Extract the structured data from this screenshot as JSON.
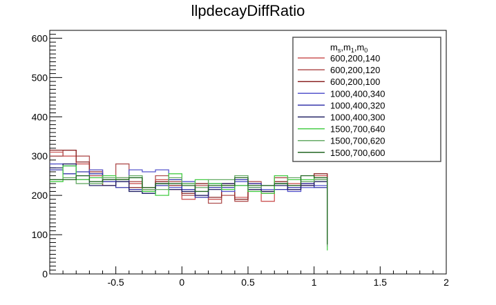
{
  "chart_data": {
    "type": "line",
    "title": "llpdecayDiffRatio",
    "xlabel": "",
    "ylabel": "",
    "xlim": [
      -1.0,
      2.0
    ],
    "ylim": [
      0,
      620
    ],
    "x_ticks": [
      -0.5,
      0,
      0.5,
      1,
      1.5,
      2
    ],
    "x_tick_labels": [
      "-0.5",
      "0",
      "0.5",
      "1",
      "1.5",
      "2"
    ],
    "y_ticks": [
      0,
      100,
      200,
      300,
      400,
      500,
      600
    ],
    "y_tick_labels": [
      "0",
      "100",
      "200",
      "300",
      "400",
      "500",
      "600"
    ],
    "bin_edges": [
      -1.0,
      -0.9,
      -0.8,
      -0.7,
      -0.6,
      -0.5,
      -0.4,
      -0.3,
      -0.2,
      -0.1,
      0.0,
      0.1,
      0.2,
      0.3,
      0.4,
      0.5,
      0.6,
      0.7,
      0.8,
      0.9,
      1.0,
      1.1
    ],
    "legend": {
      "title_main": "m",
      "title_subs": [
        "s",
        "1",
        "0"
      ],
      "placement": "top-right"
    },
    "series": [
      {
        "name": "600,200,140",
        "color": "#cc5555",
        "values": [
          310,
          300,
          280,
          265,
          240,
          245,
          230,
          215,
          240,
          215,
          190,
          200,
          190,
          230,
          195,
          230,
          185,
          245,
          230,
          225,
          250,
          80
        ]
      },
      {
        "name": "600,200,120",
        "color": "#b05050",
        "values": [
          300,
          315,
          300,
          250,
          225,
          280,
          235,
          220,
          250,
          235,
          200,
          225,
          180,
          200,
          185,
          235,
          205,
          245,
          215,
          230,
          240,
          85
        ]
      },
      {
        "name": "600,200,100",
        "color": "#8b2525",
        "values": [
          315,
          315,
          285,
          260,
          225,
          240,
          220,
          215,
          235,
          225,
          205,
          230,
          195,
          225,
          190,
          215,
          210,
          235,
          225,
          225,
          255,
          80
        ]
      },
      {
        "name": "1000,400,340",
        "color": "#5555cc",
        "values": [
          280,
          275,
          250,
          265,
          240,
          235,
          265,
          260,
          265,
          220,
          235,
          200,
          230,
          210,
          235,
          220,
          215,
          230,
          210,
          220,
          225,
          70
        ]
      },
      {
        "name": "1000,400,320",
        "color": "#3333aa",
        "values": [
          265,
          255,
          260,
          255,
          235,
          220,
          215,
          205,
          225,
          240,
          215,
          195,
          220,
          220,
          240,
          230,
          225,
          215,
          220,
          230,
          220,
          90
        ]
      },
      {
        "name": "1000,400,300",
        "color": "#222266",
        "values": [
          270,
          280,
          240,
          225,
          225,
          235,
          210,
          205,
          230,
          215,
          210,
          200,
          215,
          230,
          225,
          215,
          210,
          225,
          215,
          225,
          235,
          85
        ]
      },
      {
        "name": "1500,700,640",
        "color": "#44cc44",
        "values": [
          235,
          275,
          240,
          245,
          250,
          240,
          245,
          210,
          200,
          255,
          230,
          240,
          230,
          215,
          225,
          210,
          205,
          250,
          240,
          240,
          245,
          60
        ]
      },
      {
        "name": "1500,700,620",
        "color": "#66aa66",
        "values": [
          240,
          245,
          230,
          230,
          245,
          245,
          250,
          215,
          215,
          245,
          230,
          220,
          240,
          240,
          250,
          220,
          225,
          230,
          245,
          235,
          240,
          70
        ]
      },
      {
        "name": "1500,700,600",
        "color": "#226622",
        "values": [
          240,
          240,
          250,
          235,
          240,
          240,
          245,
          220,
          230,
          230,
          225,
          210,
          225,
          225,
          245,
          225,
          225,
          230,
          225,
          250,
          245,
          75
        ]
      }
    ]
  }
}
